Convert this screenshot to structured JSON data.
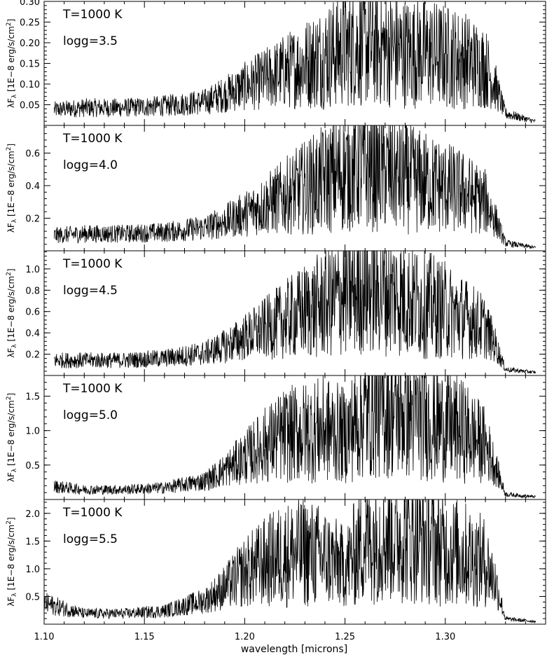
{
  "figure": {
    "xlabel": "wavelength [microns]",
    "ylabel_prefix": "λF",
    "ylabel_sub": "λ",
    "ylabel_unit": "[1E−8 erg/s/cm",
    "ylabel_sup": "2",
    "ylabel_close": "]",
    "xlim": [
      1.1,
      1.35
    ],
    "xticks": [
      1.1,
      1.15,
      1.2,
      1.25,
      1.3
    ],
    "xtick_labels": [
      "1.10",
      "1.15",
      "1.20",
      "1.25",
      "1.30"
    ]
  },
  "chart_data": [
    {
      "type": "line",
      "title_T": "T=1000 K",
      "title_g": "logg=3.5",
      "ylim": [
        0.0,
        0.3
      ],
      "yticks": [
        0.05,
        0.1,
        0.15,
        0.2,
        0.25,
        0.3
      ],
      "ytick_labels": [
        "0.05",
        "0.10",
        "0.15",
        "0.20",
        "0.25",
        "0.30"
      ],
      "series": [
        {
          "x": [
            1.105,
            1.12,
            1.14,
            1.16,
            1.18,
            1.19,
            1.2,
            1.21,
            1.22,
            1.23,
            1.24,
            1.25,
            1.26,
            1.27,
            1.28,
            1.29,
            1.3,
            1.31,
            1.32,
            1.325,
            1.33,
            1.345
          ],
          "y": [
            0.04,
            0.045,
            0.045,
            0.05,
            0.06,
            0.08,
            0.1,
            0.12,
            0.14,
            0.16,
            0.18,
            0.2,
            0.21,
            0.2,
            0.19,
            0.19,
            0.18,
            0.17,
            0.15,
            0.1,
            0.03,
            0.01
          ]
        }
      ]
    },
    {
      "type": "line",
      "title_T": "T=1000 K",
      "title_g": "logg=4.0",
      "ylim": [
        0.0,
        0.77
      ],
      "yticks": [
        0.2,
        0.4,
        0.6
      ],
      "ytick_labels": [
        "0.2",
        "0.4",
        "0.6"
      ],
      "series": [
        {
          "x": [
            1.105,
            1.12,
            1.14,
            1.16,
            1.18,
            1.19,
            1.2,
            1.21,
            1.22,
            1.23,
            1.24,
            1.25,
            1.26,
            1.27,
            1.28,
            1.29,
            1.3,
            1.31,
            1.32,
            1.325,
            1.33,
            1.345
          ],
          "y": [
            0.1,
            0.11,
            0.11,
            0.12,
            0.15,
            0.19,
            0.24,
            0.3,
            0.36,
            0.42,
            0.47,
            0.52,
            0.55,
            0.52,
            0.48,
            0.45,
            0.42,
            0.38,
            0.32,
            0.2,
            0.05,
            0.02
          ]
        }
      ]
    },
    {
      "type": "line",
      "title_T": "T=1000 K",
      "title_g": "logg=4.5",
      "ylim": [
        0.0,
        1.17
      ],
      "yticks": [
        0.2,
        0.4,
        0.6,
        0.8,
        1.0
      ],
      "ytick_labels": [
        "0.2",
        "0.4",
        "0.6",
        "0.8",
        "1.0"
      ],
      "series": [
        {
          "x": [
            1.105,
            1.12,
            1.14,
            1.16,
            1.18,
            1.19,
            1.2,
            1.21,
            1.22,
            1.23,
            1.24,
            1.25,
            1.26,
            1.27,
            1.28,
            1.29,
            1.3,
            1.31,
            1.32,
            1.325,
            1.33,
            1.345
          ],
          "y": [
            0.15,
            0.15,
            0.15,
            0.17,
            0.22,
            0.29,
            0.38,
            0.47,
            0.56,
            0.65,
            0.72,
            0.82,
            0.88,
            0.85,
            0.78,
            0.72,
            0.66,
            0.58,
            0.48,
            0.3,
            0.06,
            0.03
          ]
        }
      ]
    },
    {
      "type": "line",
      "title_T": "T=1000 K",
      "title_g": "logg=5.0",
      "ylim": [
        0.0,
        1.8
      ],
      "yticks": [
        0.5,
        1.0,
        1.5
      ],
      "ytick_labels": [
        "0.5",
        "1.0",
        "1.5"
      ],
      "series": [
        {
          "x": [
            1.105,
            1.12,
            1.14,
            1.16,
            1.18,
            1.19,
            1.2,
            1.21,
            1.22,
            1.23,
            1.24,
            1.25,
            1.26,
            1.27,
            1.28,
            1.29,
            1.3,
            1.31,
            1.32,
            1.325,
            1.33,
            1.345
          ],
          "y": [
            0.2,
            0.15,
            0.15,
            0.18,
            0.28,
            0.45,
            0.65,
            0.85,
            1.0,
            1.05,
            1.1,
            1.0,
            1.35,
            1.4,
            1.35,
            1.25,
            1.15,
            1.05,
            0.85,
            0.5,
            0.08,
            0.04
          ]
        }
      ]
    },
    {
      "type": "line",
      "title_T": "T=1000 K",
      "title_g": "logg=5.5",
      "ylim": [
        0.0,
        2.25
      ],
      "yticks": [
        0.5,
        1.0,
        1.5,
        2.0
      ],
      "ytick_labels": [
        "0.5",
        "1.0",
        "1.5",
        "2.0"
      ],
      "series": [
        {
          "x": [
            1.1,
            1.12,
            1.14,
            1.16,
            1.18,
            1.19,
            1.2,
            1.21,
            1.22,
            1.23,
            1.24,
            1.25,
            1.26,
            1.27,
            1.28,
            1.29,
            1.3,
            1.31,
            1.32,
            1.325,
            1.33,
            1.345
          ],
          "y": [
            0.4,
            0.2,
            0.2,
            0.25,
            0.45,
            0.7,
            1.0,
            1.2,
            1.35,
            1.4,
            1.3,
            1.1,
            1.65,
            1.75,
            1.7,
            1.65,
            1.45,
            1.35,
            1.2,
            0.8,
            0.1,
            0.05
          ]
        }
      ]
    }
  ]
}
